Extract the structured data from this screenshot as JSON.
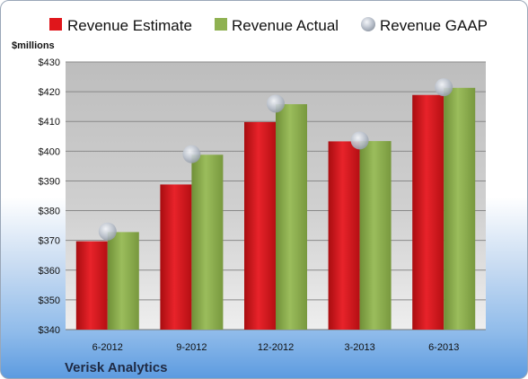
{
  "chart_data": {
    "type": "bar",
    "categories": [
      "6-2012",
      "9-2012",
      "12-2012",
      "3-2013",
      "6-2013"
    ],
    "series": [
      {
        "name": "Revenue Estimate",
        "values": [
          369.7,
          388.8,
          409.8,
          403.3,
          418.9
        ],
        "color": "#e0161b"
      },
      {
        "name": "Revenue Actual",
        "values": [
          372.8,
          398.8,
          415.8,
          403.4,
          421.3
        ],
        "color": "#8fb151"
      },
      {
        "name": "Revenue GAAP",
        "values": [
          373.0,
          399.0,
          416.0,
          403.6,
          421.5
        ],
        "color": "#b8c0cc",
        "marker": "circle"
      }
    ],
    "ylim": [
      340,
      430
    ],
    "yticks": [
      "$340",
      "$350",
      "$360",
      "$370",
      "$380",
      "$390",
      "$400",
      "$410",
      "$420",
      "$430"
    ],
    "ylabel": "$millions",
    "legend": "top",
    "grid": true
  },
  "footer": {
    "company": "Verisk Analytics"
  }
}
